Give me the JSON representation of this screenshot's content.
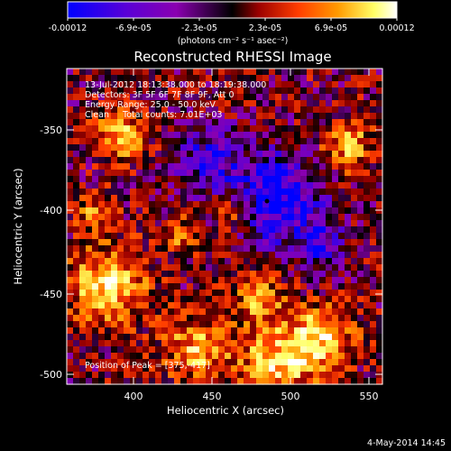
{
  "colorbar": {
    "tick_labels": [
      "-0.00012",
      "-6.9e-05",
      "-2.3e-05",
      "2.3e-05",
      "6.9e-05",
      "0.00012"
    ],
    "units_text": "(photons cm⁻² s⁻¹ asec⁻²)",
    "colors": [
      "#0000ff",
      "#5a00d6",
      "#8a00b0",
      "#000000",
      "#9b0000",
      "#ff3d00",
      "#ff9a00",
      "#ffff66",
      "#ffffff"
    ]
  },
  "title": "Reconstructed RHESSI Image",
  "annotations": {
    "time_range": "13-Jul-2012 18:13:38.000 to 18:19:38.000",
    "detectors": "Detectors: 3F 5F 6F 7F 8F 9F, Att 0",
    "energy_range": "Energy Range: 25.0 - 50.0 keV",
    "clean_counts": "Clean     Total counts: 7.01E+03",
    "peak_position": "Position of Peak = [375,-417]"
  },
  "axes": {
    "xlabel": "Heliocentric X (arcsec)",
    "ylabel": "Heliocentric Y (arcsec)",
    "xticks": [
      "400",
      "450",
      "500",
      "550"
    ],
    "yticks": [
      "-350",
      "-400",
      "-450",
      "-500"
    ]
  },
  "footer_date": "4-May-2014 14:45"
}
